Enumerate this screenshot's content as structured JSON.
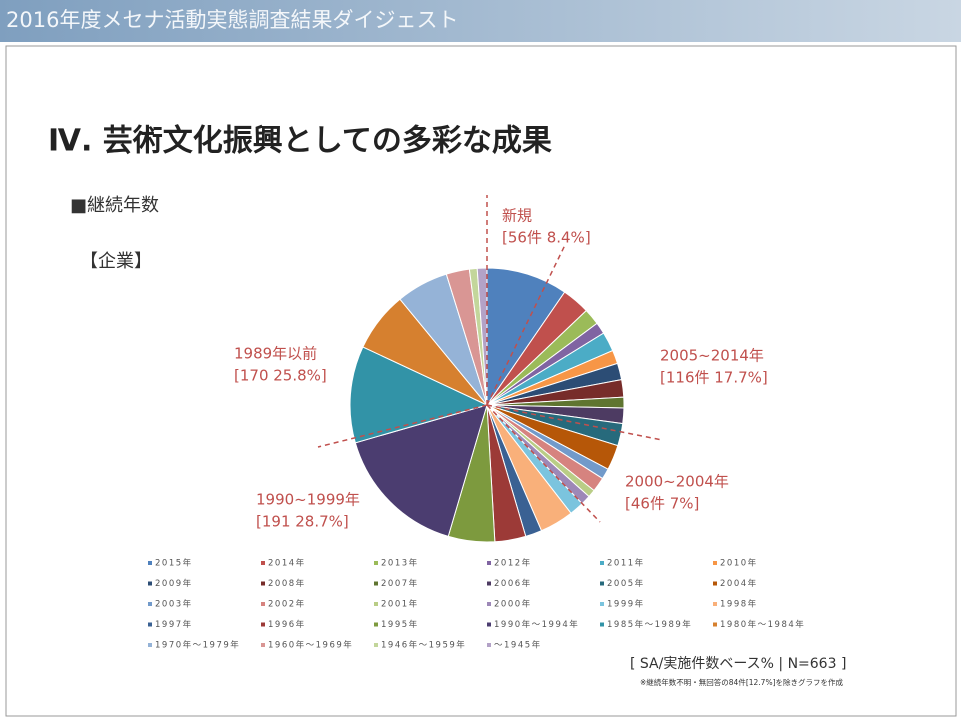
{
  "header": "2016年度メセナ活動実態調査結果ダイジェスト",
  "title": "Ⅳ. 芸術文化振興としての多彩な成果",
  "section": "■継続年数",
  "group": "【企業】",
  "chart_data": {
    "type": "pie",
    "categories": [
      "2015年",
      "2014年",
      "2013年",
      "2012年",
      "2011年",
      "2010年",
      "2009年",
      "2008年",
      "2007年",
      "2006年",
      "2005年",
      "2004年",
      "2003年",
      "2002年",
      "2001年",
      "2000年",
      "1999年",
      "1998年",
      "1997年",
      "1996年",
      "1995年",
      "1990年～1994年",
      "1985年～1989年",
      "1980年～1984年",
      "1970年～1979年",
      "1960年～1969年",
      "1946年～1959年",
      "～1945年"
    ],
    "values": [
      8.4,
      2.9,
      1.7,
      1.2,
      2.0,
      1.4,
      1.7,
      1.8,
      1.1,
      1.6,
      2.3,
      2.6,
      1.1,
      1.5,
      0.8,
      1.0,
      1.5,
      3.5,
      1.7,
      3.2,
      4.8,
      14.0,
      10.0,
      6.2,
      5.4,
      2.4,
      0.8,
      1.0
    ],
    "colors": [
      "#4f81bd",
      "#c0504d",
      "#9bbb59",
      "#8064a2",
      "#4bacc6",
      "#f79646",
      "#2c4d75",
      "#772c2a",
      "#5f7530",
      "#4d3b62",
      "#276a7c",
      "#b65708",
      "#729aca",
      "#d6837f",
      "#b9cd86",
      "#9d88b7",
      "#7bc4de",
      "#f9b07a",
      "#3a6193",
      "#9c3a37",
      "#7d9a3e",
      "#4b3d70",
      "#3293a7",
      "#d6802f",
      "#95b3d7",
      "#d99694",
      "#c3d69b",
      "#b3a2c7"
    ],
    "annotations": [
      {
        "lines": [
          "新規",
          "[56件 8.4%]"
        ]
      },
      {
        "lines": [
          "2005~2014年",
          "[116件 17.7%]"
        ]
      },
      {
        "lines": [
          "2000~2004年",
          "[46件 7%]"
        ]
      },
      {
        "lines": [
          "1990~1999年",
          "[191 28.7%]"
        ]
      },
      {
        "lines": [
          "1989年以前",
          "[170 25.8%]"
        ]
      }
    ],
    "legend": true
  },
  "footer": "[ SA/実施件数ベース% | N=663 ]",
  "note": "※継続年数不明・無回答の84件[12.7%]を除きグラフを作成"
}
